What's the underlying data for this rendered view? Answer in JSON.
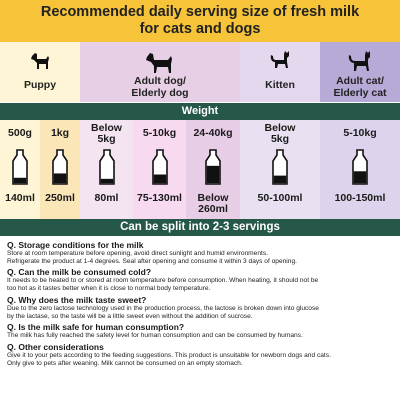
{
  "title": {
    "line1": "Recommended daily serving size of fresh milk",
    "line2": "for cats and dogs"
  },
  "animals": [
    {
      "label_lines": [
        "Puppy"
      ],
      "icon": "puppy-icon",
      "bg": "#fdf5d5"
    },
    {
      "label_lines": [
        "Adult dog/",
        "Elderly dog"
      ],
      "icon": "adult-dog-icon",
      "bg": "#e7cfe6"
    },
    {
      "label_lines": [
        "Kitten"
      ],
      "icon": "kitten-icon",
      "bg": "#e4d8ee"
    },
    {
      "label_lines": [
        "Adult cat/",
        "Elderly cat"
      ],
      "icon": "adult-cat-icon",
      "bg": "#b7aad6"
    }
  ],
  "weight_header": "Weight",
  "servings": [
    {
      "weight_lines": [
        "500g"
      ],
      "amount_lines": [
        "140ml"
      ],
      "bg": "#fdf5d5",
      "fill": 0.25
    },
    {
      "weight_lines": [
        "1kg"
      ],
      "amount_lines": [
        "250ml"
      ],
      "bg": "#fbe6b8",
      "fill": 0.45
    },
    {
      "weight_lines": [
        "Below",
        "5kg"
      ],
      "amount_lines": [
        "80ml"
      ],
      "bg": "#f4e4f2",
      "fill": 0.2
    },
    {
      "weight_lines": [
        "5-10kg"
      ],
      "amount_lines": [
        "75-130ml"
      ],
      "bg": "#f7d9f0",
      "fill": 0.4
    },
    {
      "weight_lines": [
        "24-40kg"
      ],
      "amount_lines": [
        "Below",
        "260ml"
      ],
      "bg": "#e7cde6",
      "fill": 0.8
    },
    {
      "weight_lines": [
        "Below",
        "5kg"
      ],
      "amount_lines": [
        "50-100ml"
      ],
      "bg": "#e9e1f1",
      "fill": 0.35
    },
    {
      "weight_lines": [
        "5-10kg"
      ],
      "amount_lines": [
        "100-150ml"
      ],
      "bg": "#ddd3ec",
      "fill": 0.55
    }
  ],
  "split_banner": "Can be split into 2-3 servings",
  "faq": [
    {
      "q": "Q. Storage conditions for the milk",
      "a": [
        "Store at room temperature before opening, avoid direct sunlight and humid environments.",
        "Refrigerate the product at 1-4 degrees. Seal after opening and consume it within 3 days of opening."
      ]
    },
    {
      "q": "Q. Can the milk be consumed cold?",
      "a": [
        "It needs to be heated to or stored at room temperature before consumption. When heating, it should not be",
        "too hot as it tastes better when it is close to normal body temperature."
      ]
    },
    {
      "q": "Q. Why does the milk taste sweet?",
      "a": [
        "Due to the zero lactose technology used in the production process, the lactose is broken down into glucose",
        "by the lactase, so the taste will be a little sweet even without the addition of sucrose."
      ]
    },
    {
      "q": "Q. Is the milk safe for human consumption?",
      "a": [
        "The milk has fully reached the safety level for human consumption and can be consumed by humans."
      ]
    },
    {
      "q": "Q. Other considerations",
      "a": [
        "Give it to your pets according to the feeding suggestions. This product is unsuitable for newborn dogs and cats.",
        "Only give to pets after weaning. Milk cannot be consumed on an empty stomach."
      ]
    }
  ]
}
